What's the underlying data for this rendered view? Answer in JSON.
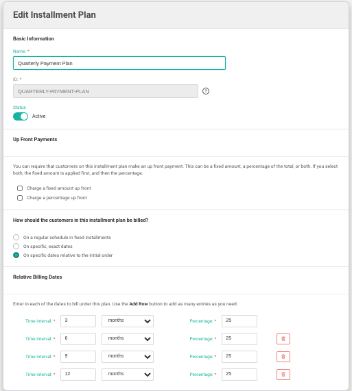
{
  "colors": {
    "accent": "#17b3a3",
    "danger": "#f08080",
    "panel_bg": "#ffffff",
    "header_bg": "#f0f0f0",
    "border": "#e4e4e8",
    "text": "#3a3a3a",
    "muted": "#777777"
  },
  "header": {
    "title": "Edit Installment Plan"
  },
  "basic": {
    "section_title": "Basic Information",
    "name_label": "Name:",
    "name_value": "Quarterly Payment Plan",
    "id_label": "ID:",
    "id_value": "QUARTERLY-PAYMENT-PLAN",
    "status_label": "Status",
    "status_text": "Active",
    "status_on": true
  },
  "upfront": {
    "section_title": "Up Front Payments",
    "description": "You can require that customers on this installment plan make an up front payment. This can be a fixed amount, a percentage of the total, or both. If you select both, the fixed amount is applied first, and then the percentage.",
    "opt_fixed": "Charge a fixed amount up front",
    "opt_pct": "Charge a percentage up front"
  },
  "billing": {
    "question": "How should the customers in this installment plan be billed?",
    "opt_regular": "On a regular schedule in fixed installments",
    "opt_exact": "On specific, exact dates",
    "opt_relative": "On specific dates relative to the initial order",
    "selected": 2
  },
  "relative": {
    "section_title": "Relative Billing Dates",
    "desc_pre": "Enter in each of the dates to bill under this plan. Use the ",
    "desc_strong": "Add Row",
    "desc_post": " button to add as many entries as you need.",
    "time_label": "Time interval:",
    "unit_option": "months",
    "pct_label": "Percentage:",
    "rows": [
      {
        "interval": "3",
        "unit": "months",
        "pct": "25",
        "deletable": false
      },
      {
        "interval": "6",
        "unit": "months",
        "pct": "25",
        "deletable": true
      },
      {
        "interval": "9",
        "unit": "months",
        "pct": "25",
        "deletable": true
      },
      {
        "interval": "12",
        "unit": "months",
        "pct": "25",
        "deletable": true
      }
    ]
  }
}
